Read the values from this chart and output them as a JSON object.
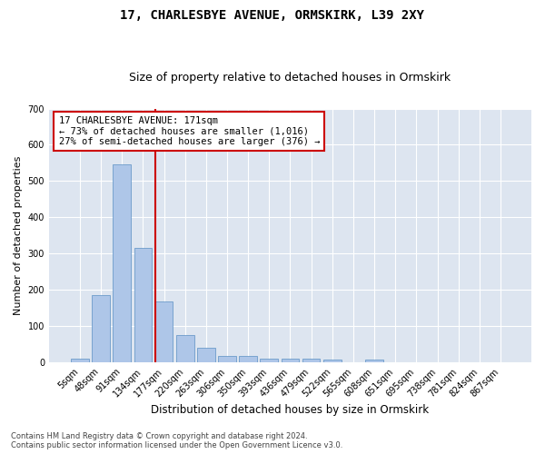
{
  "title": "17, CHARLESBYE AVENUE, ORMSKIRK, L39 2XY",
  "subtitle": "Size of property relative to detached houses in Ormskirk",
  "xlabel": "Distribution of detached houses by size in Ormskirk",
  "ylabel": "Number of detached properties",
  "categories": [
    "5sqm",
    "48sqm",
    "91sqm",
    "134sqm",
    "177sqm",
    "220sqm",
    "263sqm",
    "306sqm",
    "350sqm",
    "393sqm",
    "436sqm",
    "479sqm",
    "522sqm",
    "565sqm",
    "608sqm",
    "651sqm",
    "695sqm",
    "738sqm",
    "781sqm",
    "824sqm",
    "867sqm"
  ],
  "values": [
    9,
    185,
    547,
    315,
    168,
    76,
    40,
    17,
    17,
    11,
    11,
    11,
    8,
    0,
    7,
    0,
    0,
    0,
    0,
    0,
    0
  ],
  "bar_color": "#aec6e8",
  "bar_edgecolor": "#5a8fc4",
  "vline_color": "#cc0000",
  "vline_x_index": 3.58,
  "annotation_text": "17 CHARLESBYE AVENUE: 171sqm\n← 73% of detached houses are smaller (1,016)\n27% of semi-detached houses are larger (376) →",
  "annotation_box_color": "#ffffff",
  "annotation_box_edgecolor": "#cc0000",
  "ylim": [
    0,
    700
  ],
  "yticks": [
    0,
    100,
    200,
    300,
    400,
    500,
    600,
    700
  ],
  "footer1": "Contains HM Land Registry data © Crown copyright and database right 2024.",
  "footer2": "Contains public sector information licensed under the Open Government Licence v3.0.",
  "bg_color": "#dde5f0",
  "grid_color": "#ffffff",
  "fig_facecolor": "#ffffff"
}
